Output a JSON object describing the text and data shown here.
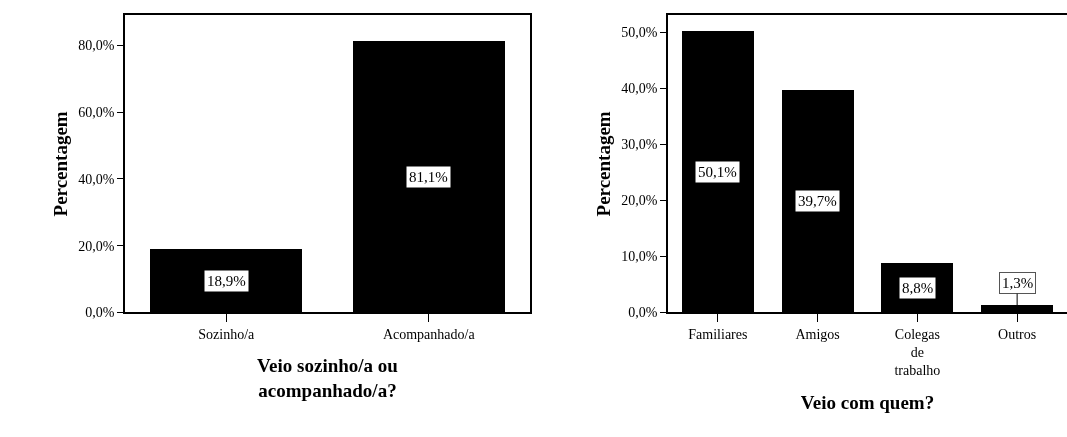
{
  "chart_data": [
    {
      "type": "bar",
      "xlabel": "Veio sozinho/a ou\nacompanhado/a?",
      "ylabel": "Percentagem",
      "categories": [
        "Sozinho/a",
        "Acompanhado/a"
      ],
      "values": [
        18.9,
        81.1
      ],
      "value_labels": [
        "18,9%",
        "81,1%"
      ],
      "color": "#000000",
      "ylim": [
        0,
        89
      ],
      "yticks": [
        {
          "value": 0,
          "label": "0,0%"
        },
        {
          "value": 20,
          "label": "20,0%"
        },
        {
          "value": 40,
          "label": "40,0%"
        },
        {
          "value": 60,
          "label": "60,0%"
        },
        {
          "value": 80,
          "label": "80,0%"
        }
      ]
    },
    {
      "type": "bar",
      "xlabel": "Veio com quem?",
      "ylabel": "Percentagem",
      "categories": [
        "Familiares",
        "Amigos",
        "Colegas\nde\ntrabalho",
        "Outros"
      ],
      "values": [
        50.1,
        39.7,
        8.8,
        1.3
      ],
      "value_labels": [
        "50,1%",
        "39,7%",
        "8,8%",
        "1,3%"
      ],
      "color": "#000000",
      "ylim": [
        0,
        53
      ],
      "yticks": [
        {
          "value": 0,
          "label": "0,0%"
        },
        {
          "value": 10,
          "label": "10,0%"
        },
        {
          "value": 20,
          "label": "20,0%"
        },
        {
          "value": 30,
          "label": "30,0%"
        },
        {
          "value": 40,
          "label": "40,0%"
        },
        {
          "value": 50,
          "label": "50,0%"
        }
      ]
    }
  ]
}
